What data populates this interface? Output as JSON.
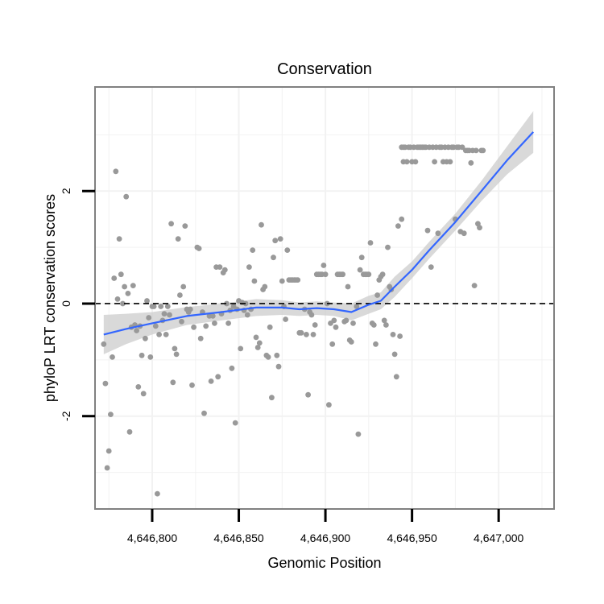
{
  "chart_data": {
    "type": "scatter",
    "title": "Conservation",
    "xlabel": "Genomic Position",
    "ylabel": "phyloP LRT conservation scores",
    "xlim": [
      4646767,
      4647032
    ],
    "ylim": [
      -3.65,
      3.85
    ],
    "x_ticks": [
      4646800,
      4646850,
      4646900,
      4646950,
      4647000
    ],
    "x_tick_labels": [
      "4,646,800",
      "4,646,850",
      "4,646,900",
      "4,646,950",
      "4,647,000"
    ],
    "y_ticks": [
      -2,
      0,
      2
    ],
    "y_tick_labels": [
      "-2",
      "0",
      "2"
    ],
    "grid": true,
    "reference_line": {
      "y": 0,
      "style": "dashed"
    },
    "colors": {
      "points": "#999999",
      "smooth": "#3366ff",
      "band": "#cccccc",
      "panel_border": "#808080",
      "grid": "#f2f2f2",
      "ref_line": "#000000"
    },
    "series": [
      {
        "name": "phyloP scores",
        "type": "scatter",
        "points": [
          [
            4646772,
            -0.72
          ],
          [
            4646773,
            -1.42
          ],
          [
            4646774,
            -2.92
          ],
          [
            4646775,
            -2.62
          ],
          [
            4646776,
            -1.97
          ],
          [
            4646777,
            -0.95
          ],
          [
            4646778,
            0.45
          ],
          [
            4646779,
            2.35
          ],
          [
            4646780,
            0.08
          ],
          [
            4646781,
            1.15
          ],
          [
            4646782,
            0.52
          ],
          [
            4646783,
            0.0
          ],
          [
            4646784,
            0.3
          ],
          [
            4646785,
            1.9
          ],
          [
            4646786,
            0.18
          ],
          [
            4646787,
            -2.28
          ],
          [
            4646788,
            -0.42
          ],
          [
            4646789,
            0.32
          ],
          [
            4646790,
            -0.38
          ],
          [
            4646791,
            -0.48
          ],
          [
            4646792,
            -1.48
          ],
          [
            4646793,
            -0.4
          ],
          [
            4646794,
            -0.92
          ],
          [
            4646795,
            -1.6
          ],
          [
            4646796,
            -0.62
          ],
          [
            4646797,
            0.05
          ],
          [
            4646798,
            -0.25
          ],
          [
            4646799,
            -0.95
          ],
          [
            4646800,
            -0.05
          ],
          [
            4646801,
            -0.05
          ],
          [
            4646802,
            -0.4
          ],
          [
            4646803,
            -3.38
          ],
          [
            4646804,
            -0.55
          ],
          [
            4646805,
            -0.05
          ],
          [
            4646806,
            -0.3
          ],
          [
            4646807,
            -0.18
          ],
          [
            4646808,
            -0.55
          ],
          [
            4646809,
            -0.05
          ],
          [
            4646810,
            -0.2
          ],
          [
            4646811,
            1.42
          ],
          [
            4646812,
            -1.4
          ],
          [
            4646813,
            -0.8
          ],
          [
            4646814,
            -0.9
          ],
          [
            4646815,
            1.15
          ],
          [
            4646816,
            0.15
          ],
          [
            4646817,
            -0.32
          ],
          [
            4646818,
            0.3
          ],
          [
            4646819,
            1.38
          ],
          [
            4646820,
            -0.1
          ],
          [
            4646821,
            -0.15
          ],
          [
            4646822,
            -0.1
          ],
          [
            4646823,
            -1.45
          ],
          [
            4646824,
            -0.42
          ],
          [
            4646826,
            1.0
          ],
          [
            4646827,
            0.98
          ],
          [
            4646828,
            -0.62
          ],
          [
            4646829,
            -0.15
          ],
          [
            4646830,
            -1.95
          ],
          [
            4646831,
            -0.4
          ],
          [
            4646833,
            -0.22
          ],
          [
            4646834,
            -1.38
          ],
          [
            4646835,
            -0.22
          ],
          [
            4646836,
            -0.35
          ],
          [
            4646837,
            0.65
          ],
          [
            4646838,
            -1.3
          ],
          [
            4646839,
            0.65
          ],
          [
            4646840,
            -0.18
          ],
          [
            4646841,
            0.55
          ],
          [
            4646842,
            0.6
          ],
          [
            4646843,
            0.0
          ],
          [
            4646844,
            -0.35
          ],
          [
            4646845,
            -0.12
          ],
          [
            4646846,
            -1.15
          ],
          [
            4646847,
            -0.05
          ],
          [
            4646848,
            -2.12
          ],
          [
            4646849,
            -0.1
          ],
          [
            4646850,
            0.05
          ],
          [
            4646851,
            -0.8
          ],
          [
            4646852,
            0.02
          ],
          [
            4646853,
            -0.12
          ],
          [
            4646854,
            0.0
          ],
          [
            4646855,
            -0.2
          ],
          [
            4646856,
            0.65
          ],
          [
            4646857,
            -0.1
          ],
          [
            4646858,
            0.95
          ],
          [
            4646859,
            0.4
          ],
          [
            4646860,
            -0.6
          ],
          [
            4646861,
            -0.78
          ],
          [
            4646862,
            -0.7
          ],
          [
            4646863,
            1.4
          ],
          [
            4646864,
            0.25
          ],
          [
            4646865,
            0.3
          ],
          [
            4646866,
            -0.92
          ],
          [
            4646867,
            -0.95
          ],
          [
            4646868,
            -0.42
          ],
          [
            4646869,
            -1.67
          ],
          [
            4646870,
            0.82
          ],
          [
            4646871,
            1.12
          ],
          [
            4646872,
            -0.92
          ],
          [
            4646873,
            -1.12
          ],
          [
            4646874,
            1.15
          ],
          [
            4646875,
            0.4
          ],
          [
            4646876,
            -0.05
          ],
          [
            4646877,
            -0.28
          ],
          [
            4646878,
            0.95
          ],
          [
            4646879,
            0.42
          ],
          [
            4646880,
            0.42
          ],
          [
            4646881,
            0.42
          ],
          [
            4646882,
            0.42
          ],
          [
            4646883,
            0.42
          ],
          [
            4646884,
            0.42
          ],
          [
            4646885,
            -0.52
          ],
          [
            4646886,
            -0.52
          ],
          [
            4646888,
            -0.1
          ],
          [
            4646889,
            -0.55
          ],
          [
            4646890,
            -1.62
          ],
          [
            4646891,
            -0.15
          ],
          [
            4646892,
            -0.2
          ],
          [
            4646893,
            -0.55
          ],
          [
            4646894,
            -0.38
          ],
          [
            4646895,
            0.52
          ],
          [
            4646896,
            0.52
          ],
          [
            4646897,
            0.52
          ],
          [
            4646898,
            0.52
          ],
          [
            4646899,
            0.68
          ],
          [
            4646900,
            0.52
          ],
          [
            4646901,
            0.0
          ],
          [
            4646902,
            -1.8
          ],
          [
            4646903,
            -0.35
          ],
          [
            4646904,
            -0.72
          ],
          [
            4646905,
            -0.3
          ],
          [
            4646906,
            -0.42
          ],
          [
            4646907,
            0.52
          ],
          [
            4646908,
            0.52
          ],
          [
            4646909,
            0.52
          ],
          [
            4646910,
            0.52
          ],
          [
            4646911,
            -0.32
          ],
          [
            4646912,
            -0.3
          ],
          [
            4646913,
            0.3
          ],
          [
            4646914,
            -0.65
          ],
          [
            4646915,
            -0.68
          ],
          [
            4646916,
            -0.35
          ],
          [
            4646918,
            -0.05
          ],
          [
            4646919,
            -2.32
          ],
          [
            4646920,
            0.6
          ],
          [
            4646921,
            0.82
          ],
          [
            4646922,
            0.52
          ],
          [
            4646923,
            0.52
          ],
          [
            4646924,
            0.52
          ],
          [
            4646925,
            0.52
          ],
          [
            4646926,
            1.08
          ],
          [
            4646927,
            -0.35
          ],
          [
            4646928,
            -0.38
          ],
          [
            4646929,
            -0.72
          ],
          [
            4646930,
            0.15
          ],
          [
            4646931,
            0.42
          ],
          [
            4646932,
            0.48
          ],
          [
            4646933,
            0.52
          ],
          [
            4646934,
            -0.3
          ],
          [
            4646935,
            -0.38
          ],
          [
            4646936,
            1.0
          ],
          [
            4646937,
            0.3
          ],
          [
            4646938,
            0.25
          ],
          [
            4646939,
            -0.55
          ],
          [
            4646940,
            -0.9
          ],
          [
            4646941,
            -1.3
          ],
          [
            4646942,
            1.38
          ],
          [
            4646943,
            -0.58
          ],
          [
            4646944,
            1.5
          ],
          [
            4646944,
            2.78
          ],
          [
            4646945,
            2.78
          ],
          [
            4646945,
            2.52
          ],
          [
            4646946,
            2.78
          ],
          [
            4646947,
            2.52
          ],
          [
            4646948,
            2.78
          ],
          [
            4646949,
            2.78
          ],
          [
            4646950,
            2.52
          ],
          [
            4646951,
            2.78
          ],
          [
            4646952,
            2.52
          ],
          [
            4646953,
            2.78
          ],
          [
            4646954,
            2.78
          ],
          [
            4646955,
            2.78
          ],
          [
            4646956,
            2.78
          ],
          [
            4646957,
            2.78
          ],
          [
            4646958,
            2.78
          ],
          [
            4646959,
            1.3
          ],
          [
            4646960,
            2.78
          ],
          [
            4646961,
            0.65
          ],
          [
            4646962,
            2.78
          ],
          [
            4646963,
            2.52
          ],
          [
            4646964,
            2.78
          ],
          [
            4646965,
            1.25
          ],
          [
            4646966,
            2.78
          ],
          [
            4646967,
            2.78
          ],
          [
            4646968,
            2.52
          ],
          [
            4646969,
            2.78
          ],
          [
            4646970,
            2.52
          ],
          [
            4646971,
            2.78
          ],
          [
            4646972,
            2.52
          ],
          [
            4646973,
            2.78
          ],
          [
            4646974,
            2.78
          ],
          [
            4646975,
            1.5
          ],
          [
            4646976,
            2.78
          ],
          [
            4646977,
            2.78
          ],
          [
            4646978,
            1.28
          ],
          [
            4646979,
            2.78
          ],
          [
            4646980,
            1.25
          ],
          [
            4646981,
            2.72
          ],
          [
            4646982,
            2.72
          ],
          [
            4646983,
            2.72
          ],
          [
            4646984,
            2.5
          ],
          [
            4646985,
            2.72
          ],
          [
            4646986,
            0.32
          ],
          [
            4646987,
            2.72
          ],
          [
            4646988,
            1.42
          ],
          [
            4646989,
            1.35
          ],
          [
            4646990,
            2.72
          ],
          [
            4646991,
            2.72
          ]
        ]
      },
      {
        "name": "loess fit",
        "type": "line",
        "x": [
          4646772,
          4646785,
          4646800,
          4646820,
          4646840,
          4646860,
          4646875,
          4646885,
          4646895,
          4646905,
          4646915,
          4646925,
          4646932,
          4646940,
          4646950,
          4646960,
          4646975,
          4646990,
          4647005,
          4647020
        ],
        "y": [
          -0.55,
          -0.45,
          -0.35,
          -0.22,
          -0.15,
          -0.07,
          -0.07,
          -0.1,
          -0.08,
          -0.1,
          -0.15,
          -0.02,
          0.05,
          0.3,
          0.6,
          0.95,
          1.45,
          2.0,
          2.55,
          3.05
        ],
        "band_lower": [
          -0.9,
          -0.72,
          -0.55,
          -0.38,
          -0.3,
          -0.22,
          -0.2,
          -0.22,
          -0.2,
          -0.22,
          -0.3,
          -0.18,
          -0.1,
          0.12,
          0.45,
          0.8,
          1.3,
          1.82,
          2.3,
          2.68
        ],
        "band_upper": [
          -0.2,
          -0.18,
          -0.15,
          -0.06,
          0.0,
          0.08,
          0.06,
          0.02,
          0.04,
          0.02,
          0.0,
          0.14,
          0.2,
          0.48,
          0.75,
          1.1,
          1.6,
          2.18,
          2.8,
          3.42
        ]
      }
    ]
  }
}
